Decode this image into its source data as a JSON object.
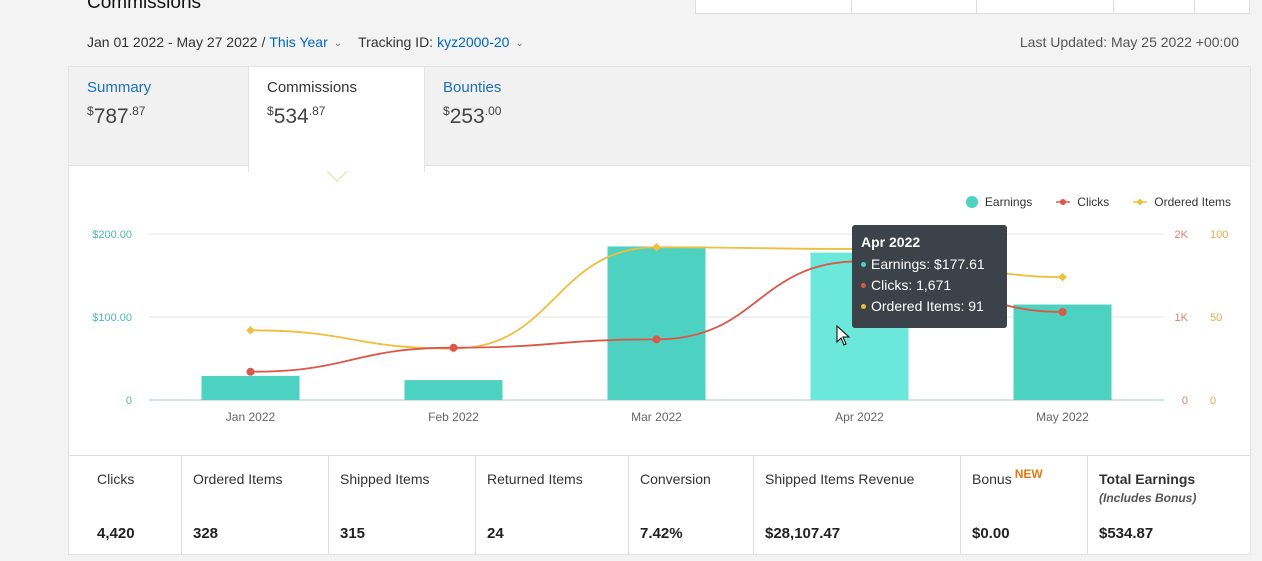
{
  "page_title": "Commissions",
  "filter": {
    "date_range": "Jan 01 2022 - May 27 2022",
    "separator": "/",
    "period": "This Year",
    "tracking_label": "Tracking ID:",
    "tracking_id": "kyz2000-20"
  },
  "last_updated": "Last Updated: May 25 2022 +00:00",
  "tabs": [
    {
      "label": "Summary",
      "dollar": "$",
      "whole": "787",
      "cents": ".87"
    },
    {
      "label": "Commissions",
      "dollar": "$",
      "whole": "534",
      "cents": ".87"
    },
    {
      "label": "Bounties",
      "dollar": "$",
      "whole": "253",
      "cents": ".00"
    }
  ],
  "legend": [
    "Earnings",
    "Clicks",
    "Ordered Items"
  ],
  "colors": {
    "earnings": "#4dd2c2",
    "earnings_hover": "#6be8da",
    "clicks": "#d9584a",
    "ordered": "#f0bd3c"
  },
  "chart_data": {
    "type": "bar",
    "categories": [
      "Jan 2022",
      "Feb 2022",
      "Mar 2022",
      "Apr 2022",
      "May 2022"
    ],
    "series": [
      {
        "name": "Earnings",
        "type": "bar",
        "axis": "left",
        "values": [
          29,
          24,
          185,
          177.61,
          115
        ]
      },
      {
        "name": "Clicks",
        "type": "line",
        "axis": "right1",
        "values": [
          340,
          630,
          730,
          1671,
          1060
        ]
      },
      {
        "name": "Ordered Items",
        "type": "line",
        "axis": "right2",
        "values": [
          42,
          31,
          92,
          91,
          74
        ]
      }
    ],
    "left_axis": {
      "ticks": [
        "0",
        "$100.00",
        "$200.00"
      ],
      "range": [
        0,
        200
      ]
    },
    "right1_axis": {
      "ticks": [
        "0",
        "1K",
        "2K"
      ],
      "range": [
        0,
        2000
      ]
    },
    "right2_axis": {
      "ticks": [
        "0",
        "50",
        "100"
      ],
      "range": [
        0,
        100
      ]
    },
    "grid": true,
    "legend_position": "top-right"
  },
  "tooltip": {
    "title": "Apr 2022",
    "earnings": "Earnings: $177.61",
    "clicks": "Clicks: 1,671",
    "ordered": "Ordered Items: 91"
  },
  "stats": [
    {
      "label": "Clicks",
      "value": "4,420"
    },
    {
      "label": "Ordered Items",
      "value": "328"
    },
    {
      "label": "Shipped Items",
      "value": "315"
    },
    {
      "label": "Returned Items",
      "value": "24"
    },
    {
      "label": "Conversion",
      "value": "7.42%"
    },
    {
      "label": "Shipped Items Revenue",
      "value": "$28,107.47"
    },
    {
      "label": "Bonus",
      "badge": "NEW",
      "value": "$0.00"
    },
    {
      "label": "Total Earnings",
      "sublabel": "(Includes Bonus)",
      "value": "$534.87"
    }
  ]
}
